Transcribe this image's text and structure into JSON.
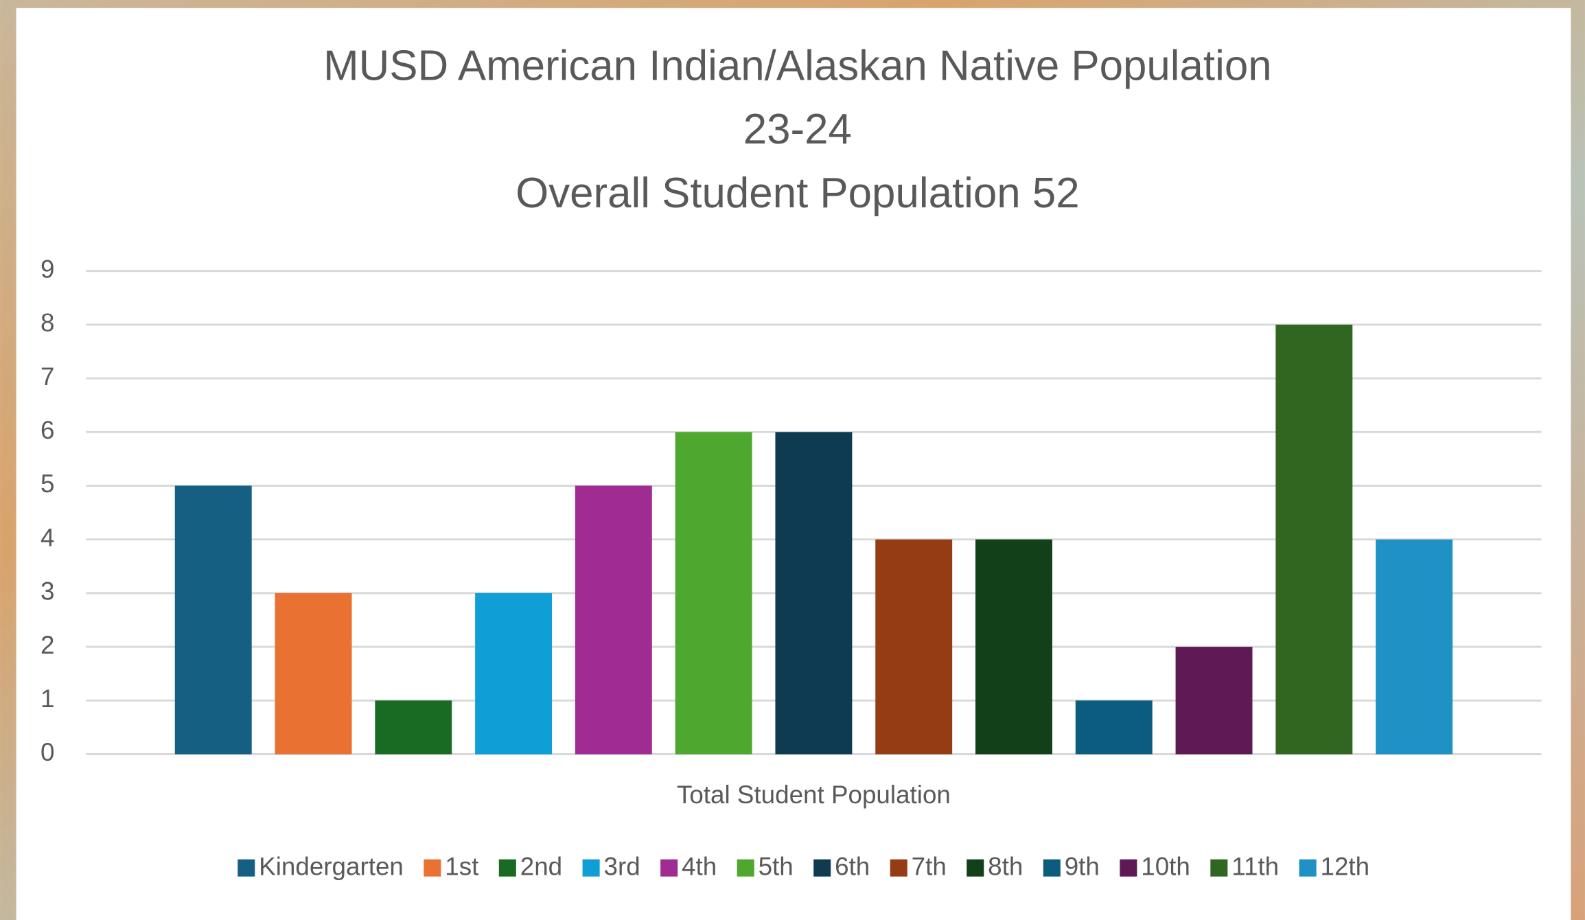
{
  "chart_data": {
    "type": "bar",
    "title": [
      "MUSD American Indian/Alaskan Native Population",
      "23-24",
      "Overall Student Population 52"
    ],
    "categories": [
      "Total Student Population"
    ],
    "series": [
      {
        "name": "Kindergarten",
        "color": "#156082",
        "values": [
          5
        ]
      },
      {
        "name": "1st",
        "color": "#e97132",
        "values": [
          3
        ]
      },
      {
        "name": "2nd",
        "color": "#196b24",
        "values": [
          1
        ]
      },
      {
        "name": "3rd",
        "color": "#0f9ed5",
        "values": [
          3
        ]
      },
      {
        "name": "4th",
        "color": "#a02b93",
        "values": [
          5
        ]
      },
      {
        "name": "5th",
        "color": "#4ea72e",
        "values": [
          6
        ]
      },
      {
        "name": "6th",
        "color": "#0e3a52",
        "values": [
          6
        ]
      },
      {
        "name": "7th",
        "color": "#963c14",
        "values": [
          4
        ]
      },
      {
        "name": "8th",
        "color": "#124019",
        "values": [
          4
        ]
      },
      {
        "name": "9th",
        "color": "#0b5c7e",
        "values": [
          1
        ]
      },
      {
        "name": "10th",
        "color": "#5f1a55",
        "values": [
          2
        ]
      },
      {
        "name": "11th",
        "color": "#30661f",
        "values": [
          8
        ]
      },
      {
        "name": "12th",
        "color": "#1f91c4",
        "values": [
          4
        ]
      }
    ],
    "ylim": [
      0,
      9
    ],
    "yticks": [
      0,
      1,
      2,
      3,
      4,
      5,
      6,
      7,
      8,
      9
    ],
    "grid": true,
    "legend": "bottom"
  }
}
